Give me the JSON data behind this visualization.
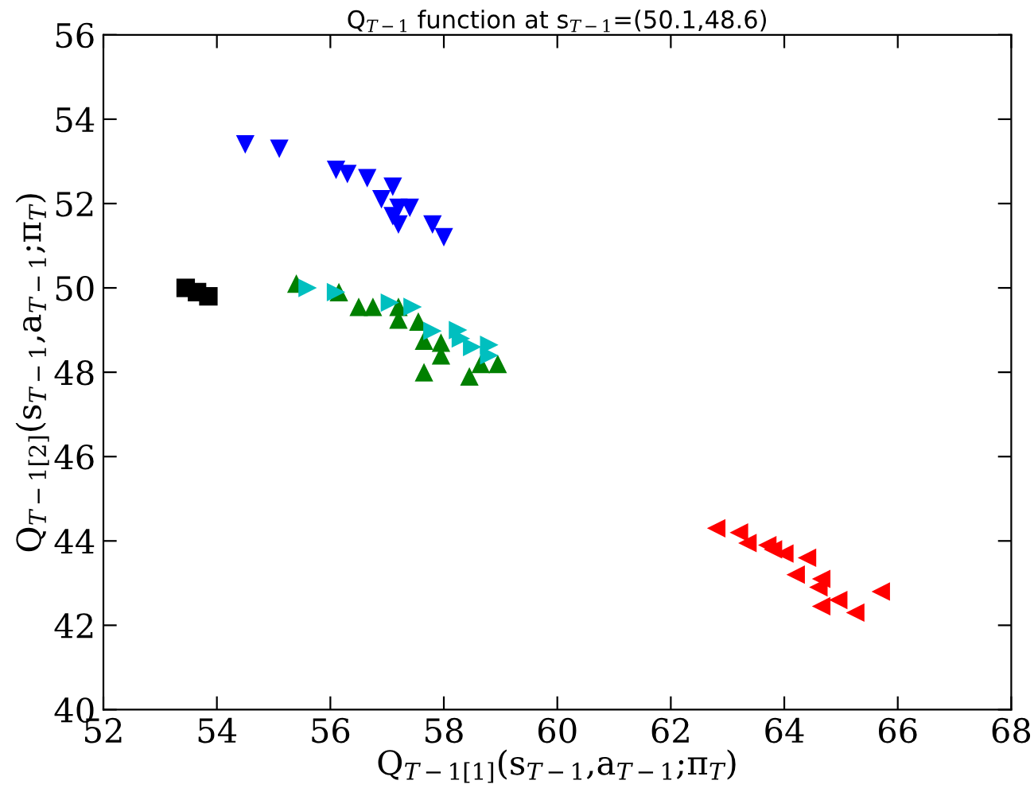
{
  "chart_data": {
    "type": "scatter",
    "title": "Q$_{T−1}$ function at s$_{T−1}$=(50.1,48.6)",
    "xlabel": "Q$_{T−1[1]}$(s$_{T−1}$,a$_{T−1}$;π$_{T}$)",
    "ylabel": "Q$_{T−1[2]}$(s$_{T−1}$,a$_{T−1}$;π$_{T}$)",
    "xlim": [
      52,
      68
    ],
    "ylim": [
      40,
      56
    ],
    "xticks": [
      52,
      54,
      56,
      58,
      60,
      62,
      64,
      66,
      68
    ],
    "yticks": [
      40,
      42,
      44,
      46,
      48,
      50,
      52,
      54,
      56
    ],
    "grid": false,
    "legend": false,
    "series": [
      {
        "color": "#000000",
        "marker": "square",
        "x": [
          53.45,
          53.65,
          53.85
        ],
        "values": [
          50.0,
          49.9,
          49.8
        ]
      },
      {
        "color": "#0000ff",
        "marker": "triangle_down",
        "x": [
          54.5,
          55.1,
          56.1,
          56.3,
          56.65,
          57.1,
          56.9,
          57.2,
          57.4,
          57.1,
          57.2,
          57.8,
          58.0
        ],
        "values": [
          53.4,
          53.3,
          52.8,
          52.7,
          52.6,
          52.4,
          52.1,
          51.9,
          51.9,
          51.7,
          51.5,
          51.5,
          51.2
        ]
      },
      {
        "color": "#008000",
        "marker": "triangle_up",
        "x": [
          55.4,
          56.15,
          56.5,
          56.75,
          57.2,
          57.2,
          57.55,
          57.65,
          57.95,
          57.95,
          58.65,
          58.95,
          57.65,
          58.45
        ],
        "values": [
          50.1,
          49.9,
          49.55,
          49.55,
          49.55,
          49.25,
          49.2,
          48.75,
          48.7,
          48.4,
          48.2,
          48.2,
          48.0,
          47.9
        ]
      },
      {
        "color": "#00bfbf",
        "marker": "triangle_right",
        "x": [
          55.6,
          56.1,
          57.05,
          57.45,
          57.8,
          58.25,
          58.3,
          58.5,
          58.8,
          58.8
        ],
        "values": [
          50.0,
          49.9,
          49.65,
          49.55,
          48.98,
          49.0,
          48.8,
          48.6,
          48.65,
          48.4
        ]
      },
      {
        "color": "#ff0000",
        "marker": "triangle_left",
        "x": [
          62.8,
          63.2,
          63.35,
          63.7,
          63.8,
          64.0,
          64.4,
          64.2,
          64.65,
          64.6,
          64.65,
          64.95,
          65.25,
          65.7
        ],
        "values": [
          44.3,
          44.2,
          43.95,
          43.9,
          43.8,
          43.7,
          43.6,
          43.2,
          43.1,
          42.9,
          42.45,
          42.6,
          42.3,
          42.8
        ]
      }
    ]
  }
}
